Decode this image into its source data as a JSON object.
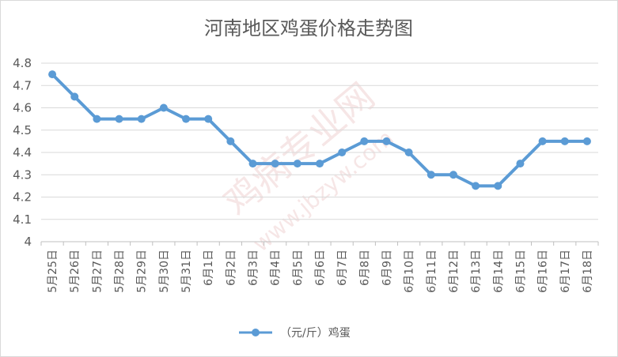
{
  "chart_data": {
    "type": "line",
    "title": "河南地区鸡蛋价格走势图",
    "categories": [
      "5月25日",
      "5月26日",
      "5月27日",
      "5月28日",
      "5月29日",
      "5月30日",
      "5月31日",
      "6月1日",
      "6月2日",
      "6月3日",
      "6月4日",
      "6月5日",
      "6月6日",
      "6月7日",
      "6月8日",
      "6月9日",
      "6月10日",
      "6月11日",
      "6月12日",
      "6月13日",
      "6月14日",
      "6月15日",
      "6月16日",
      "6月17日",
      "6月18日"
    ],
    "series": [
      {
        "name": "（元/斤）鸡蛋",
        "color": "#5b9bd5",
        "values": [
          4.75,
          4.65,
          4.55,
          4.55,
          4.55,
          4.6,
          4.55,
          4.55,
          4.45,
          4.35,
          4.35,
          4.35,
          4.35,
          4.4,
          4.45,
          4.45,
          4.4,
          4.3,
          4.3,
          4.25,
          4.25,
          4.35,
          4.45,
          4.45,
          4.45
        ]
      }
    ],
    "ylim": [
      4,
      4.8
    ],
    "yticks": [
      "4",
      "4.1",
      "4.2",
      "4.3",
      "4.4",
      "4.5",
      "4.6",
      "4.7",
      "4.8"
    ],
    "ytick_values": [
      4,
      4.1,
      4.2,
      4.3,
      4.4,
      4.5,
      4.6,
      4.7,
      4.8
    ],
    "grid": true,
    "legend_position": "bottom",
    "xlabel": "",
    "ylabel": ""
  },
  "watermark": {
    "main": "鸡病专业网",
    "url": "www.jbzyw.com"
  }
}
